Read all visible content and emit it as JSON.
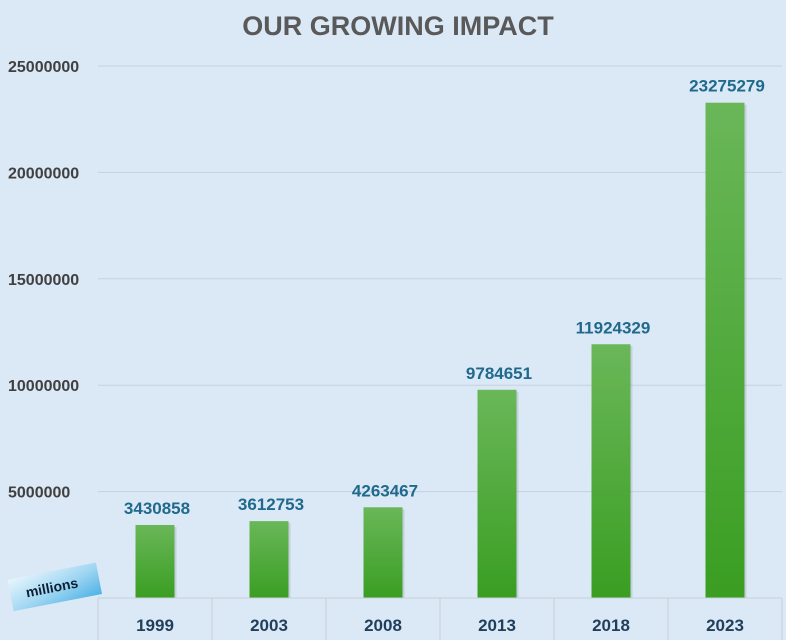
{
  "chart_data": {
    "type": "bar",
    "title": "OUR GROWING IMPACT",
    "categories": [
      "1999",
      "2003",
      "2008",
      "2013",
      "2018",
      "2023"
    ],
    "values": [
      3430858,
      3612753,
      4263467,
      9784651,
      11924329,
      23275279
    ],
    "data_labels": [
      "3430858",
      "3612753",
      "4263467",
      "9784651",
      "11924329",
      "23275279"
    ],
    "y_ticks": [
      "5000000",
      "10000000",
      "15000000",
      "20000000",
      "25000000"
    ],
    "y_tick_values": [
      5000000,
      10000000,
      15000000,
      20000000,
      25000000
    ],
    "ylim": [
      0,
      25000000
    ],
    "grid": true,
    "unit_badge": "millions",
    "colors": {
      "background": "#dbe8f6",
      "bar_top": "#6ab759",
      "bar_bottom": "#3a9e22",
      "data_label": "#1f6a8c",
      "gridline": "#c5d2e0"
    }
  }
}
